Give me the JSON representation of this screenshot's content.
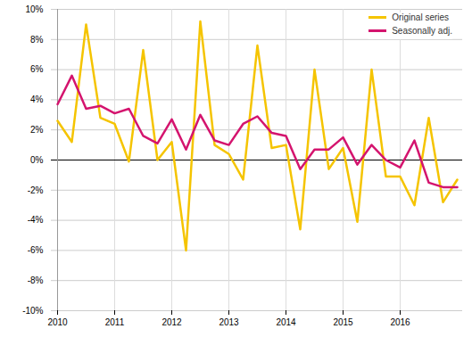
{
  "chart_data": {
    "type": "line",
    "categories": [
      "2010",
      null,
      null,
      null,
      "2011",
      null,
      null,
      null,
      "2012",
      null,
      null,
      null,
      "2013",
      null,
      null,
      null,
      "2014",
      null,
      null,
      null,
      "2015",
      null,
      null,
      null,
      "2016",
      null,
      null,
      null,
      null
    ],
    "series": [
      {
        "name": "Original series",
        "color": "#f5c400",
        "values": [
          2.6,
          1.2,
          9.0,
          2.8,
          2.4,
          -0.1,
          7.3,
          0.0,
          1.2,
          -6.0,
          9.2,
          1.0,
          0.4,
          -1.3,
          7.6,
          0.8,
          1.0,
          -4.6,
          6.0,
          -0.6,
          0.8,
          -4.1,
          6.0,
          -1.1,
          -1.1,
          -3.0,
          2.8,
          -2.8,
          -1.3
        ]
      },
      {
        "name": "Seasonally adj.",
        "color": "#d4146e",
        "values": [
          3.7,
          5.6,
          3.4,
          3.6,
          3.1,
          3.4,
          1.6,
          1.1,
          2.7,
          0.7,
          3.0,
          1.3,
          1.0,
          2.4,
          2.9,
          1.8,
          1.6,
          -0.6,
          0.7,
          0.7,
          1.5,
          -0.3,
          1.0,
          0.0,
          -0.5,
          1.3,
          -1.5,
          -1.8,
          -1.8
        ]
      }
    ],
    "ylim": [
      -10,
      10
    ],
    "yticks": [
      {
        "value": -10,
        "label": "-10%"
      },
      {
        "value": -8,
        "label": "-8%"
      },
      {
        "value": -6,
        "label": "-6%"
      },
      {
        "value": -4,
        "label": "-4%"
      },
      {
        "value": -2,
        "label": "-2%"
      },
      {
        "value": 0,
        "label": "0%"
      },
      {
        "value": 2,
        "label": "2%"
      },
      {
        "value": 4,
        "label": "4%"
      },
      {
        "value": 6,
        "label": "6%"
      },
      {
        "value": 8,
        "label": "8%"
      },
      {
        "value": 10,
        "label": "10%"
      }
    ],
    "grid": true,
    "legend": "top-right"
  }
}
